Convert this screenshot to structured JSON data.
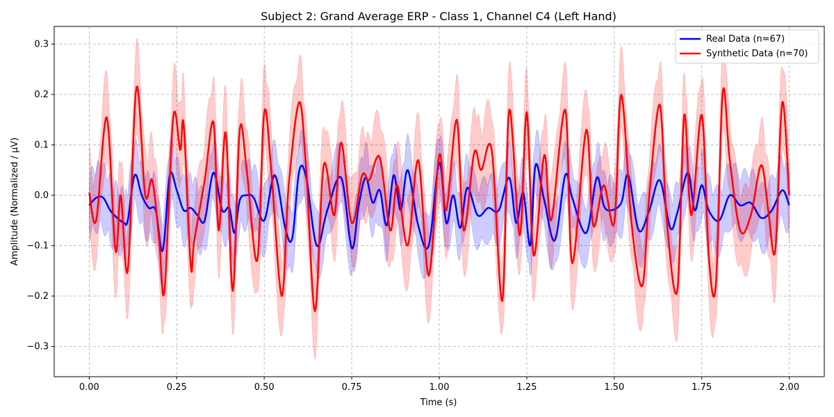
{
  "chart_data": {
    "type": "line",
    "title": "Subject 2: Grand Average ERP - Class 1, Channel C4 (Left Hand)",
    "xlabel": "Time (s)",
    "ylabel": "Amplitude (Normalized / μV)",
    "xlim": [
      -0.1,
      2.1
    ],
    "ylim": [
      -0.36,
      0.335
    ],
    "xticks": [
      0.0,
      0.25,
      0.5,
      0.75,
      1.0,
      1.25,
      1.5,
      1.75,
      2.0
    ],
    "xtick_labels": [
      "0.00",
      "0.25",
      "0.50",
      "0.75",
      "1.00",
      "1.25",
      "1.50",
      "1.75",
      "2.00"
    ],
    "yticks": [
      -0.3,
      -0.2,
      -0.1,
      0.0,
      0.1,
      0.2,
      0.3
    ],
    "ytick_labels": [
      "−0.3",
      "−0.2",
      "−0.1",
      "0.0",
      "0.1",
      "0.2",
      "0.3"
    ],
    "grid": true,
    "legend_position": "top-right",
    "series": [
      {
        "name": "Real Data (n=67)",
        "color": "#0000ff",
        "band_color": "#0000ff",
        "band_opacity": 0.2,
        "band_halfwidth": 0.06,
        "x": [
          0.0,
          0.02,
          0.04,
          0.06,
          0.08,
          0.1,
          0.11,
          0.13,
          0.15,
          0.17,
          0.19,
          0.21,
          0.23,
          0.25,
          0.27,
          0.29,
          0.31,
          0.33,
          0.355,
          0.38,
          0.4,
          0.415,
          0.43,
          0.45,
          0.47,
          0.5,
          0.53,
          0.56,
          0.58,
          0.6,
          0.62,
          0.65,
          0.68,
          0.72,
          0.75,
          0.77,
          0.79,
          0.81,
          0.83,
          0.85,
          0.87,
          0.89,
          0.91,
          0.94,
          0.97,
          1.0,
          1.02,
          1.04,
          1.06,
          1.08,
          1.11,
          1.14,
          1.17,
          1.2,
          1.22,
          1.24,
          1.26,
          1.275,
          1.3,
          1.33,
          1.36,
          1.38,
          1.42,
          1.45,
          1.47,
          1.49,
          1.52,
          1.54,
          1.57,
          1.6,
          1.63,
          1.66,
          1.68,
          1.71,
          1.73,
          1.75,
          1.77,
          1.8,
          1.83,
          1.86,
          1.89,
          1.92,
          1.95,
          1.98,
          2.0
        ],
        "y": [
          -0.02,
          -0.005,
          -0.005,
          -0.03,
          -0.045,
          -0.055,
          -0.05,
          0.04,
          0.0,
          -0.025,
          -0.03,
          -0.11,
          0.04,
          0.01,
          -0.03,
          -0.025,
          -0.04,
          -0.05,
          0.045,
          -0.03,
          -0.025,
          -0.075,
          -0.01,
          0.0,
          -0.005,
          -0.05,
          0.04,
          -0.065,
          -0.085,
          0.048,
          0.035,
          -0.1,
          -0.03,
          0.035,
          -0.105,
          -0.02,
          0.035,
          -0.015,
          0.01,
          -0.06,
          0.04,
          -0.03,
          0.05,
          -0.06,
          -0.1,
          0.065,
          -0.055,
          0.0,
          -0.065,
          0.015,
          -0.04,
          -0.025,
          -0.03,
          0.035,
          -0.055,
          0.005,
          -0.1,
          0.06,
          -0.01,
          -0.09,
          0.04,
          -0.005,
          -0.075,
          0.035,
          -0.02,
          -0.03,
          -0.015,
          0.04,
          -0.07,
          -0.03,
          0.03,
          -0.065,
          -0.035,
          0.045,
          -0.03,
          0.02,
          -0.03,
          -0.05,
          0.0,
          -0.02,
          -0.015,
          -0.045,
          -0.03,
          0.01,
          -0.02
        ]
      },
      {
        "name": "Synthetic Data (n=70)",
        "color": "#ff0000",
        "band_color": "#ff0000",
        "band_opacity": 0.2,
        "band_halfwidth": 0.08,
        "x": [
          0.0,
          0.02,
          0.05,
          0.075,
          0.09,
          0.11,
          0.135,
          0.16,
          0.18,
          0.2,
          0.215,
          0.24,
          0.26,
          0.27,
          0.29,
          0.3,
          0.33,
          0.355,
          0.37,
          0.39,
          0.41,
          0.43,
          0.45,
          0.48,
          0.5,
          0.52,
          0.55,
          0.57,
          0.6,
          0.62,
          0.645,
          0.67,
          0.7,
          0.72,
          0.75,
          0.78,
          0.8,
          0.83,
          0.86,
          0.88,
          0.91,
          0.94,
          0.97,
          1.0,
          1.02,
          1.05,
          1.07,
          1.1,
          1.12,
          1.15,
          1.18,
          1.2,
          1.23,
          1.25,
          1.27,
          1.3,
          1.32,
          1.36,
          1.38,
          1.42,
          1.44,
          1.47,
          1.5,
          1.52,
          1.55,
          1.58,
          1.6,
          1.63,
          1.65,
          1.68,
          1.7,
          1.72,
          1.75,
          1.77,
          1.79,
          1.81,
          1.83,
          1.86,
          1.89,
          1.92,
          1.94,
          1.96,
          1.98,
          2.0
        ],
        "y": [
          0.005,
          -0.05,
          0.155,
          -0.11,
          0.0,
          -0.15,
          0.215,
          0.0,
          0.03,
          -0.09,
          -0.19,
          0.155,
          0.09,
          0.14,
          -0.14,
          -0.09,
          0.03,
          0.145,
          -0.07,
          0.125,
          -0.19,
          0.13,
          0.05,
          -0.13,
          0.165,
          0.05,
          -0.2,
          0.02,
          0.185,
          0.05,
          -0.23,
          0.06,
          -0.04,
          0.105,
          -0.055,
          0.04,
          0.03,
          0.075,
          -0.07,
          0.02,
          -0.1,
          0.07,
          -0.16,
          0.08,
          -0.03,
          0.15,
          -0.07,
          0.085,
          0.05,
          0.09,
          -0.21,
          0.17,
          -0.08,
          0.165,
          -0.12,
          0.08,
          -0.05,
          0.17,
          -0.135,
          0.13,
          -0.06,
          0.02,
          -0.055,
          0.2,
          -0.06,
          -0.18,
          0.0,
          0.18,
          -0.05,
          -0.19,
          0.16,
          -0.04,
          0.16,
          -0.12,
          -0.18,
          0.205,
          0.07,
          -0.07,
          -0.04,
          0.06,
          -0.03,
          -0.11,
          0.185,
          0.0
        ]
      }
    ]
  }
}
